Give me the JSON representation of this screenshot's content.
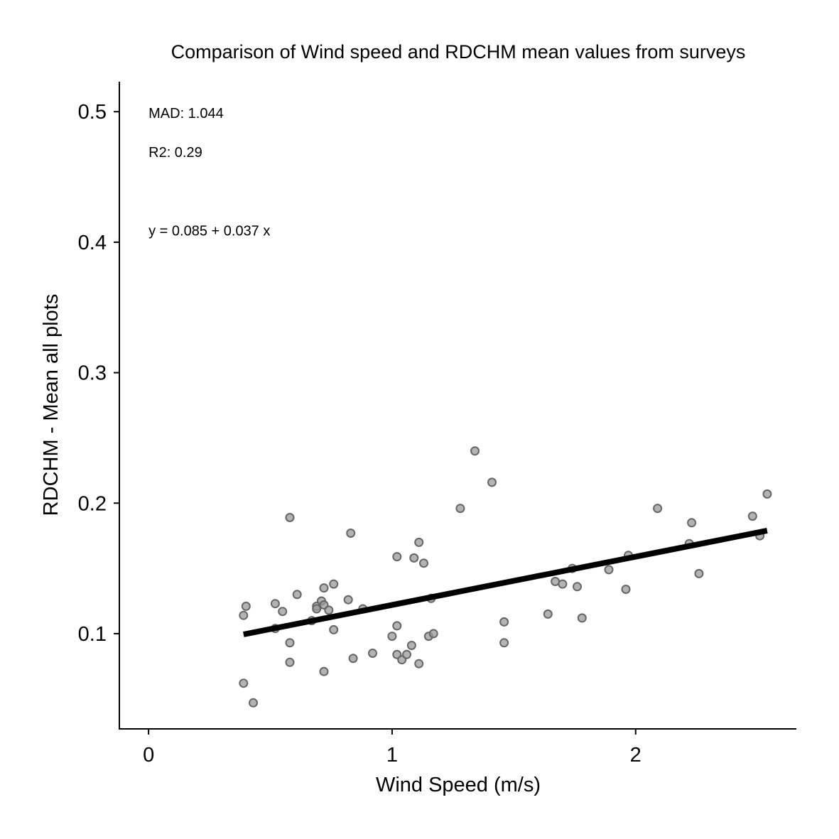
{
  "chart_data": {
    "type": "scatter",
    "title": "Comparison of Wind speed and RDCHM mean values from surveys",
    "xlabel": "Wind Speed (m/s)",
    "ylabel": "RDCHM - Mean all plots",
    "xlim": [
      -0.12,
      2.66
    ],
    "ylim": [
      0.027,
      0.523
    ],
    "x_ticks": [
      {
        "value": 0,
        "label": "0"
      },
      {
        "value": 1,
        "label": "1"
      },
      {
        "value": 2,
        "label": "2"
      }
    ],
    "y_ticks": [
      {
        "value": 0.1,
        "label": "0.1"
      },
      {
        "value": 0.2,
        "label": "0.2"
      },
      {
        "value": 0.3,
        "label": "0.3"
      },
      {
        "value": 0.4,
        "label": "0.4"
      },
      {
        "value": 0.5,
        "label": "0.5"
      }
    ],
    "grid": false,
    "points": [
      {
        "x": 0.39,
        "y": 0.062
      },
      {
        "x": 0.39,
        "y": 0.114
      },
      {
        "x": 0.4,
        "y": 0.121
      },
      {
        "x": 0.43,
        "y": 0.047
      },
      {
        "x": 0.52,
        "y": 0.123
      },
      {
        "x": 0.52,
        "y": 0.104
      },
      {
        "x": 0.55,
        "y": 0.117
      },
      {
        "x": 0.58,
        "y": 0.189
      },
      {
        "x": 0.58,
        "y": 0.093
      },
      {
        "x": 0.58,
        "y": 0.078
      },
      {
        "x": 0.61,
        "y": 0.13
      },
      {
        "x": 0.67,
        "y": 0.11
      },
      {
        "x": 0.69,
        "y": 0.121
      },
      {
        "x": 0.69,
        "y": 0.119
      },
      {
        "x": 0.71,
        "y": 0.125
      },
      {
        "x": 0.72,
        "y": 0.135
      },
      {
        "x": 0.72,
        "y": 0.122
      },
      {
        "x": 0.72,
        "y": 0.071
      },
      {
        "x": 0.74,
        "y": 0.118
      },
      {
        "x": 0.76,
        "y": 0.138
      },
      {
        "x": 0.76,
        "y": 0.103
      },
      {
        "x": 0.82,
        "y": 0.126
      },
      {
        "x": 0.83,
        "y": 0.177
      },
      {
        "x": 0.84,
        "y": 0.081
      },
      {
        "x": 0.88,
        "y": 0.119
      },
      {
        "x": 0.92,
        "y": 0.085
      },
      {
        "x": 1.0,
        "y": 0.098
      },
      {
        "x": 1.02,
        "y": 0.159
      },
      {
        "x": 1.02,
        "y": 0.106
      },
      {
        "x": 1.02,
        "y": 0.084
      },
      {
        "x": 1.04,
        "y": 0.08
      },
      {
        "x": 1.06,
        "y": 0.084
      },
      {
        "x": 1.08,
        "y": 0.091
      },
      {
        "x": 1.09,
        "y": 0.158
      },
      {
        "x": 1.11,
        "y": 0.17
      },
      {
        "x": 1.11,
        "y": 0.077
      },
      {
        "x": 1.13,
        "y": 0.154
      },
      {
        "x": 1.15,
        "y": 0.098
      },
      {
        "x": 1.16,
        "y": 0.127
      },
      {
        "x": 1.17,
        "y": 0.1
      },
      {
        "x": 1.28,
        "y": 0.196
      },
      {
        "x": 1.34,
        "y": 0.24
      },
      {
        "x": 1.41,
        "y": 0.216
      },
      {
        "x": 1.46,
        "y": 0.109
      },
      {
        "x": 1.46,
        "y": 0.093
      },
      {
        "x": 1.64,
        "y": 0.115
      },
      {
        "x": 1.67,
        "y": 0.14
      },
      {
        "x": 1.7,
        "y": 0.138
      },
      {
        "x": 1.74,
        "y": 0.15
      },
      {
        "x": 1.76,
        "y": 0.136
      },
      {
        "x": 1.78,
        "y": 0.112
      },
      {
        "x": 1.89,
        "y": 0.149
      },
      {
        "x": 1.96,
        "y": 0.134
      },
      {
        "x": 1.97,
        "y": 0.16
      },
      {
        "x": 2.09,
        "y": 0.196
      },
      {
        "x": 2.22,
        "y": 0.169
      },
      {
        "x": 2.23,
        "y": 0.185
      },
      {
        "x": 2.26,
        "y": 0.146
      },
      {
        "x": 2.48,
        "y": 0.19
      },
      {
        "x": 2.51,
        "y": 0.175
      },
      {
        "x": 2.54,
        "y": 0.207
      }
    ],
    "fit_line": {
      "intercept": 0.085,
      "slope": 0.037,
      "x_range": [
        0.39,
        2.54
      ]
    },
    "annotations": [
      {
        "text": "MAD: 1.044",
        "x": 0.0,
        "y": 0.499
      },
      {
        "text": "R2: 0.29",
        "x": 0.0,
        "y": 0.469
      },
      {
        "text": "y =  0.085 + 0.037 x",
        "x": 0.0,
        "y": 0.409
      }
    ],
    "colors": {
      "points": "#9a9a9a",
      "fit_line": "#000000"
    }
  }
}
